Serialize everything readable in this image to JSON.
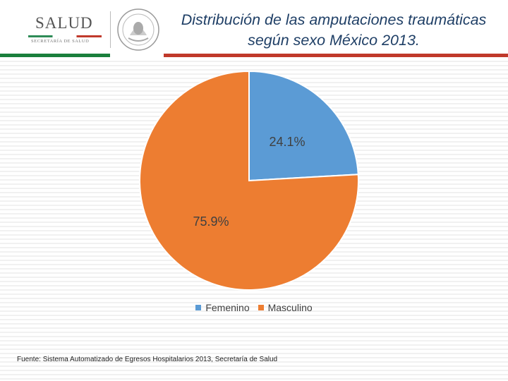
{
  "header": {
    "logo_text": "SALUD",
    "logo_subtext": "SECRETARÍA DE SALUD",
    "title_line1": "Distribución de las amputaciones traumáticas",
    "title_line2": "según sexo México 2013."
  },
  "colors": {
    "femenino": "#5b9bd5",
    "masculino": "#ed7d31",
    "flag_green": "#1a7f3c",
    "flag_red": "#c0392b",
    "title": "#1f3f66"
  },
  "chart_data": {
    "type": "pie",
    "title": "Distribución de las amputaciones traumáticas según sexo México 2013.",
    "categories": [
      "Femenino",
      "Masculino"
    ],
    "values": [
      24.1,
      75.9
    ],
    "data_labels": [
      "24.1%",
      "75.9%"
    ],
    "legend_position": "bottom",
    "start_angle": "12 o'clock, clockwise"
  },
  "legend": {
    "femenino": "Femenino",
    "masculino": "Masculino"
  },
  "footer": {
    "source": "Fuente: Sistema Automatizado de Egresos Hospitalarios 2013, Secretaría de Salud"
  }
}
